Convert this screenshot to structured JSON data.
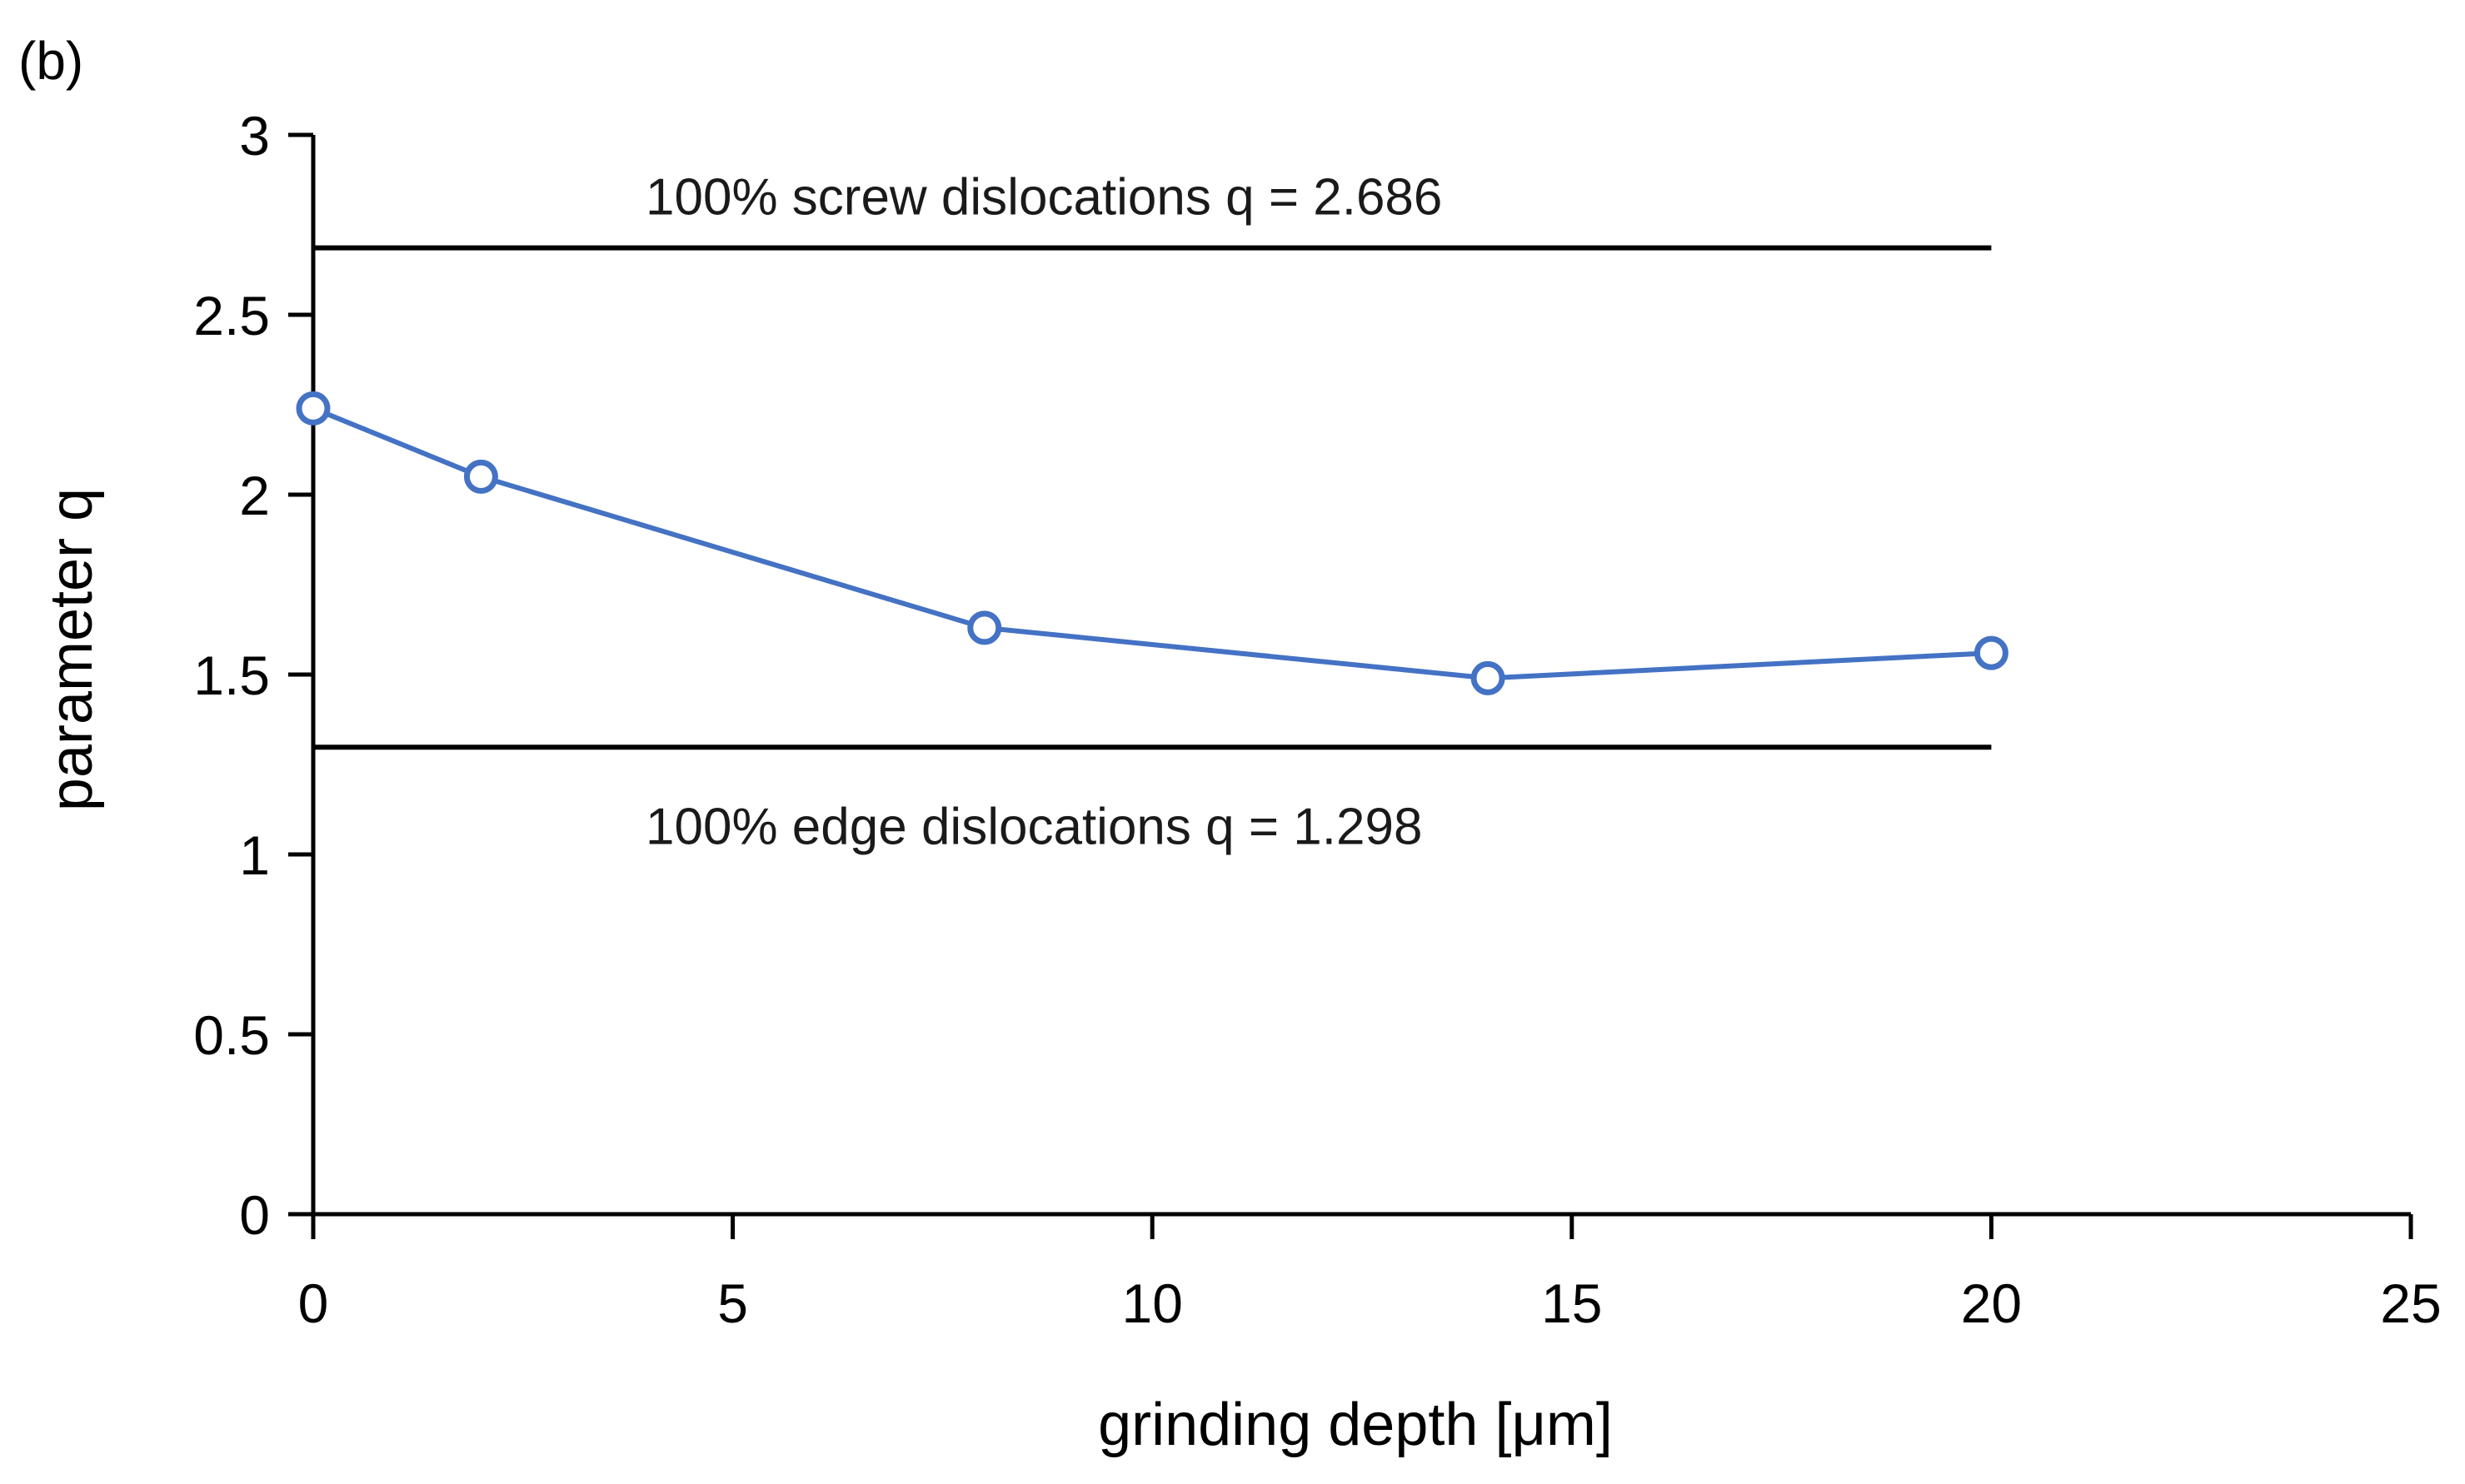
{
  "chart_data": {
    "type": "line",
    "panel_label": "(b)",
    "xlabel": "grinding depth [μm]",
    "ylabel": "parameter q",
    "xlim": [
      0,
      25
    ],
    "ylim": [
      0,
      3
    ],
    "x_ticks": [
      0,
      5,
      10,
      15,
      20,
      25
    ],
    "y_ticks": [
      0,
      0.5,
      1,
      1.5,
      2,
      2.5,
      3
    ],
    "x_tick_labels": [
      "0",
      "5",
      "10",
      "15",
      "20",
      "25"
    ],
    "y_tick_labels": [
      "0",
      "0.5",
      "1",
      "1.5",
      "2",
      "2.5",
      "3"
    ],
    "grid": false,
    "series": [
      {
        "x": [
          0,
          2,
          8,
          14,
          20
        ],
        "y": [
          2.24,
          2.05,
          1.63,
          1.49,
          1.56
        ],
        "color": "#4472C4",
        "marker": "open-circle"
      }
    ],
    "reference_lines": [
      {
        "y": 2.686,
        "x_range": [
          0,
          20
        ],
        "label": "100% screw dislocations  q = 2.686",
        "label_position": "above",
        "color": "#000000"
      },
      {
        "y": 1.298,
        "x_range": [
          0,
          20
        ],
        "label": "100% edge dislocations  q = 1.298",
        "label_position": "below",
        "color": "#000000"
      }
    ]
  }
}
